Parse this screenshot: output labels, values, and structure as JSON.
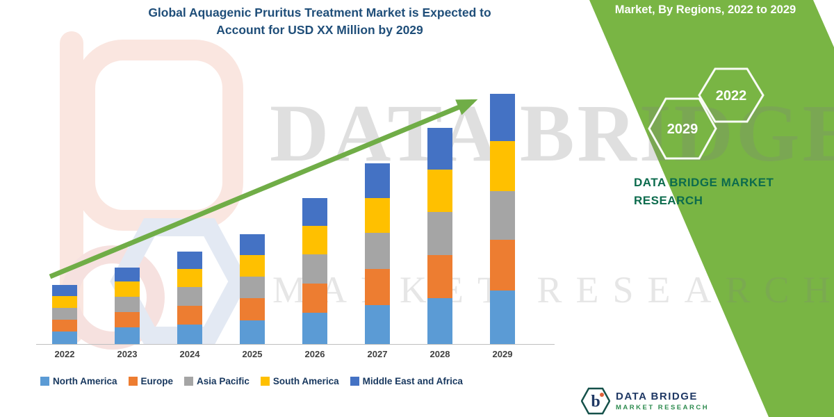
{
  "title": {
    "line1": "Global Aquagenic Pruritus Treatment Market is Expected to",
    "line2": "Account for USD XX Million by 2029"
  },
  "side_panel": {
    "heading": "Market, By Regions, 2022 to 2029",
    "hexagons": [
      "2029",
      "2022"
    ],
    "brand_line1": "DATA BRIDGE MARKET",
    "brand_line2": "RESEARCH"
  },
  "watermark": {
    "big_text": "DATA BRIDGE",
    "sub_text": "MARKET RESEARCH"
  },
  "footer_logo": {
    "name": "DATA BRIDGE",
    "sub": "MARKET RESEARCH"
  },
  "chart_data": {
    "type": "bar",
    "stacked": true,
    "title": "Global Aquagenic Pruritus Treatment Market is Expected to Account for USD XX Million by 2029",
    "note": "y-axis unlabeled (USD XX Million); values estimated in relative units from bar heights",
    "categories": [
      "2022",
      "2023",
      "2024",
      "2025",
      "2026",
      "2027",
      "2028",
      "2029"
    ],
    "series": [
      {
        "name": "North America",
        "color": "#5B9BD5",
        "values": [
          1.8,
          2.4,
          2.8,
          3.4,
          4.5,
          5.6,
          6.6,
          7.7
        ]
      },
      {
        "name": "Europe",
        "color": "#ED7D31",
        "values": [
          1.7,
          2.2,
          2.7,
          3.2,
          4.2,
          5.2,
          6.2,
          7.3
        ]
      },
      {
        "name": "Asia Pacific",
        "color": "#A5A5A5",
        "values": [
          1.7,
          2.2,
          2.7,
          3.1,
          4.2,
          5.2,
          6.2,
          7.0
        ]
      },
      {
        "name": "South America",
        "color": "#FFC000",
        "values": [
          1.7,
          2.2,
          2.6,
          3.1,
          4.1,
          5.0,
          6.1,
          7.2
        ]
      },
      {
        "name": "Middle East and Africa",
        "color": "#4472C4",
        "values": [
          1.6,
          2.0,
          2.5,
          3.0,
          4.0,
          5.0,
          6.0,
          6.8
        ]
      }
    ],
    "ylim": [
      0,
      36.5
    ],
    "grid": false,
    "legend_position": "bottom",
    "trend_arrow": true,
    "arrow_color": "#70AD47",
    "axis_color": "#BFBFBF"
  }
}
